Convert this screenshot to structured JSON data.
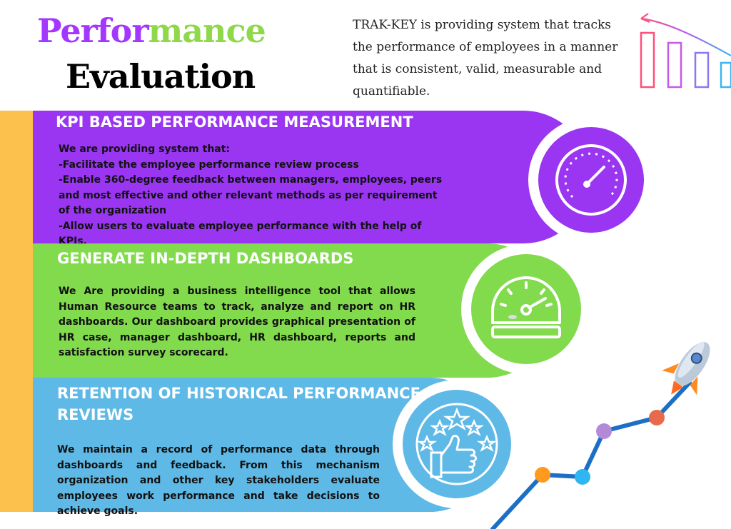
{
  "header": {
    "title_part1": "Perfor",
    "title_part2": "mance",
    "title_line2": "Evaluation",
    "intro": "TRAK-KEY is providing system that tracks the performance of employees in a manner that is consistent, valid, measurable and quantifiable."
  },
  "sections": [
    {
      "title": "KPI BASED PERFORMANCE MEASUREMENT",
      "lines": [
        "We are providing system that:",
        "-Facilitate the employee performance review process",
        "-Enable 360-degree feedback between managers, employees, peers and most effective and other relevant methods as per requirement of the organization",
        "-Allow users to evaluate employee performance with the help of KPIs."
      ],
      "icon": "speedometer-icon",
      "color": "#9a35f2"
    },
    {
      "title": "GENERATE IN-DEPTH DASHBOARDS",
      "body": "We Are providing a business intelligence tool that allows Human Resource teams to track, analyze and report on HR dashboards. Our dashboard provides graphical presentation of HR case, manager dashboard, HR dashboard, reports and satisfaction survey scorecard.",
      "icon": "dashboard-gauge-icon",
      "color": "#82da4d"
    },
    {
      "title": "RETENTION OF HISTORICAL PERFORMANCE REVIEWS",
      "body": "We maintain a record of performance data through dashboards and feedback. From this mechanism organization and other key stakeholders evaluate employees work performance and take decisions to achieve goals.",
      "icon": "thumbs-up-stars-icon",
      "color": "#5fb9e6"
    }
  ],
  "colors": {
    "sidebar": "#fcc04c",
    "purple": "#9a35f2",
    "green": "#82da4d",
    "blue": "#5fb9e6"
  }
}
